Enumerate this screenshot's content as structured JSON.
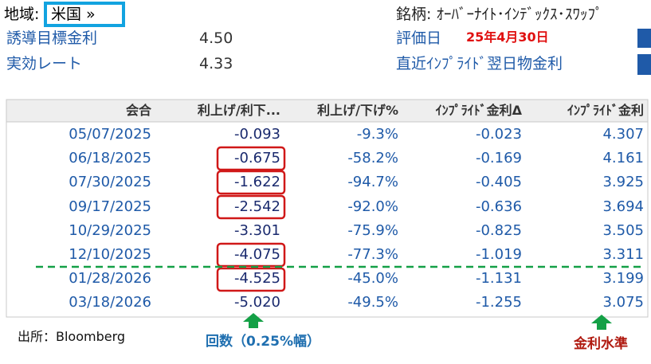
{
  "header": {
    "region_label": "地域:",
    "region": "米国 »",
    "policy_rate_label": "誘導目標金利",
    "policy_rate": "4.50",
    "effective_rate_label": "実効レート",
    "effective_rate": "4.33",
    "ticker_label": "銘柄: ｵｰﾊﾞｰﾅｲﾄ･ｲﾝﾃﾞｯｸｽ･ｽﾜｯﾌﾟ",
    "valuation_date_label": "評価日",
    "valuation_date": "25年4月30日",
    "latest_implied_label": "直近ｲﾝﾌﾟﾗｲﾄﾞ翌日物金利"
  },
  "table": {
    "columns": [
      "会合",
      "利上げ/利下...",
      "利上げ/下げ%",
      "ｲﾝﾌﾟﾗｲﾄﾞ金利Δ",
      "ｲﾝﾌﾟﾗｲﾄﾞ金利"
    ],
    "rows": [
      [
        "05/07/2025",
        "-0.093",
        "-9.3%",
        "-0.023",
        "4.307"
      ],
      [
        "06/18/2025",
        "-0.675",
        "-58.2%",
        "-0.169",
        "4.161"
      ],
      [
        "07/30/2025",
        "-1.622",
        "-94.7%",
        "-0.405",
        "3.925"
      ],
      [
        "09/17/2025",
        "-2.542",
        "-92.0%",
        "-0.636",
        "3.694"
      ],
      [
        "10/29/2025",
        "-3.301",
        "-75.9%",
        "-0.825",
        "3.505"
      ],
      [
        "12/10/2025",
        "-4.075",
        "-77.3%",
        "-1.019",
        "3.311"
      ],
      [
        "01/28/2026",
        "-4.525",
        "-45.0%",
        "-1.131",
        "3.199"
      ],
      [
        "03/18/2026",
        "-5.020",
        "-49.5%",
        "-1.255",
        "3.075"
      ]
    ]
  },
  "annotations": {
    "source": "出所：Bloomberg",
    "count_note": "回数（0.25%幅）",
    "rate_level_note": "金利水準"
  }
}
